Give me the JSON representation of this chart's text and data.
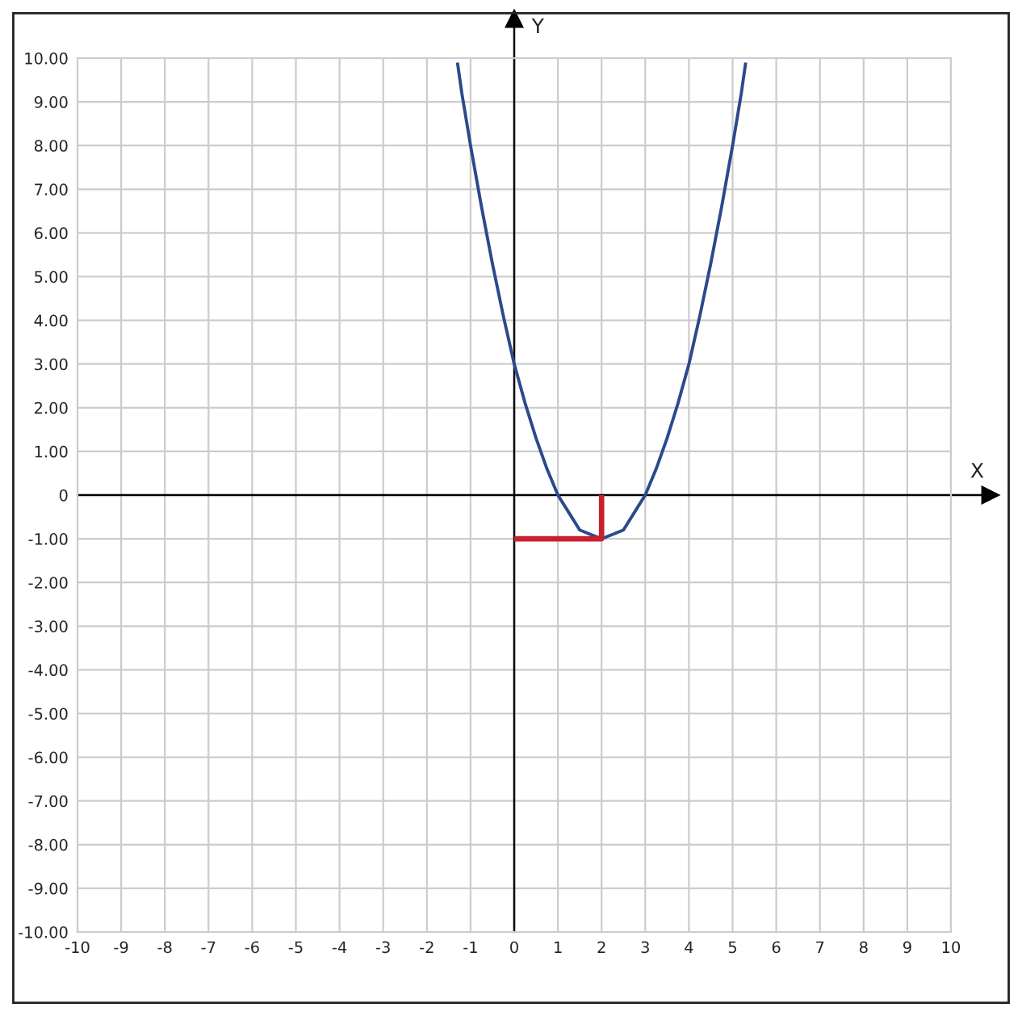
{
  "chart_data": {
    "type": "line",
    "xlabel": "X",
    "ylabel": "Y",
    "xlim": [
      -10,
      10
    ],
    "ylim": [
      -10,
      10
    ],
    "xticks": [
      -10,
      -9,
      -8,
      -7,
      -6,
      -5,
      -4,
      -3,
      -2,
      -1,
      0,
      1,
      2,
      3,
      4,
      5,
      6,
      7,
      8,
      9,
      10
    ],
    "yticks": [
      {
        "value": -10,
        "label": "-10.00"
      },
      {
        "value": -9,
        "label": "-9.00"
      },
      {
        "value": -8,
        "label": "-8.00"
      },
      {
        "value": -7,
        "label": "-7.00"
      },
      {
        "value": -6,
        "label": "-6.00"
      },
      {
        "value": -5,
        "label": "-5.00"
      },
      {
        "value": -4,
        "label": "-4.00"
      },
      {
        "value": -3,
        "label": "-3.00"
      },
      {
        "value": -2,
        "label": "-2.00"
      },
      {
        "value": -1,
        "label": "-1.00"
      },
      {
        "value": 0,
        "label": "0"
      },
      {
        "value": 1,
        "label": "1.00"
      },
      {
        "value": 2,
        "label": "2.00"
      },
      {
        "value": 3,
        "label": "3.00"
      },
      {
        "value": 4,
        "label": "4.00"
      },
      {
        "value": 5,
        "label": "5.00"
      },
      {
        "value": 6,
        "label": "6.00"
      },
      {
        "value": 7,
        "label": "7.00"
      },
      {
        "value": 8,
        "label": "8.00"
      },
      {
        "value": 9,
        "label": "9.00"
      },
      {
        "value": 10,
        "label": "10.00"
      }
    ],
    "grid": true,
    "line_style": "solid",
    "marker": "none",
    "series": [
      {
        "color": "#2b4a8c",
        "x": [
          -1.3,
          -1.2,
          -1,
          -0.75,
          -0.5,
          -0.25,
          0,
          0.25,
          0.5,
          0.75,
          1,
          1.25,
          1.5,
          1.75,
          2,
          2.25,
          2.5,
          2.75,
          3,
          3.25,
          3.5,
          3.75,
          4,
          4.25,
          4.5,
          4.75,
          5,
          5.2,
          5.3
        ],
        "values": [
          9.9,
          9.2,
          8,
          6.6,
          5.3,
          4.1,
          3,
          2.1,
          1.3,
          0.6,
          0,
          -0.4,
          -0.8,
          -0.9,
          -1,
          -0.9,
          -0.8,
          -0.4,
          0,
          0.6,
          1.3,
          2.1,
          3,
          4.1,
          5.3,
          6.6,
          8,
          9.2,
          9.9
        ]
      },
      {
        "color": "#c8202f",
        "x": [
          0,
          2,
          2
        ],
        "values": [
          -1,
          -1,
          0
        ]
      }
    ]
  }
}
